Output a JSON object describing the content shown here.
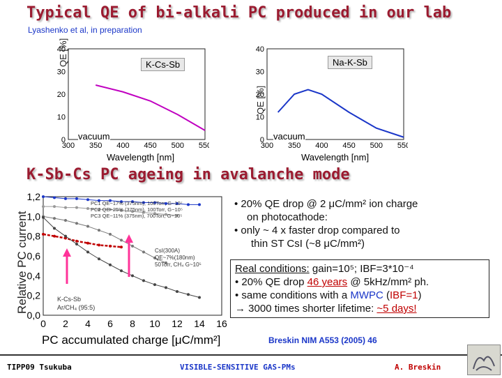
{
  "title": "Typical QE of bi-alkali PC produced in our lab",
  "ref_top": "Lyashenko et al, in preparation",
  "subtitle": "K-Sb-Cs PC ageing in avalanche mode",
  "chart_data": [
    {
      "type": "line",
      "label": "K-Cs-Sb",
      "annotation": "vacuum",
      "xlabel": "Wavelength [nm]",
      "ylabel": "QE [%]",
      "xlim": [
        300,
        550
      ],
      "ylim": [
        0,
        40
      ],
      "x": [
        350,
        400,
        450,
        500,
        550
      ],
      "y": [
        24,
        21,
        17,
        11,
        4
      ],
      "color": "#c000c0"
    },
    {
      "type": "line",
      "label": "Na-K-Sb",
      "annotation": "vacuum",
      "xlabel": "Wavelength [nm]",
      "ylabel": "QE [%]",
      "xlim": [
        300,
        550
      ],
      "ylim": [
        0,
        40
      ],
      "x": [
        320,
        350,
        375,
        400,
        450,
        500,
        550
      ],
      "y": [
        12,
        20,
        22,
        20,
        12,
        5,
        1
      ],
      "color": "#1a36c8"
    },
    {
      "type": "line",
      "xlabel": "PC accumulated charge [μC/mm²]",
      "ylabel": "Relative PC current",
      "xlim": [
        0,
        16
      ],
      "ylim": [
        0,
        1.2
      ],
      "xticks": [
        "0",
        "2",
        "4",
        "6",
        "8",
        "10",
        "12",
        "14",
        "16"
      ],
      "yticks": [
        "0,0",
        "0,2",
        "0,4",
        "0,6",
        "0,8",
        "1,0",
        "1,2"
      ],
      "series": [
        {
          "name": "PC1 QE~17% (375nm), 100Torr, G~10⁷",
          "color": "#1a36c8",
          "x": [
            0,
            1,
            2,
            3,
            4,
            5,
            6,
            7,
            8,
            9,
            10,
            11,
            12,
            13,
            14
          ],
          "y": [
            1.2,
            1.19,
            1.18,
            1.18,
            1.17,
            1.16,
            1.16,
            1.15,
            1.15,
            1.14,
            1.14,
            1.13,
            1.13,
            1.12,
            1.12
          ]
        },
        {
          "name": "PC2 QE~25% (375nm), 100Torr, G~10⁵",
          "color": "#777777",
          "x": [
            0,
            1,
            2,
            3,
            4,
            5,
            6,
            7,
            8,
            9,
            10,
            11
          ],
          "y": [
            1.0,
            0.98,
            0.96,
            0.93,
            0.9,
            0.86,
            0.82,
            0.76,
            0.7,
            0.64,
            0.58,
            0.53
          ]
        },
        {
          "name": "PC3 QE~11% (375nm), 700Torr, G~10⁵",
          "color": "#999999",
          "x": [
            0,
            1,
            2,
            3,
            4,
            5,
            6,
            7,
            8,
            9,
            10,
            11,
            12
          ],
          "y": [
            1.1,
            1.1,
            1.09,
            1.09,
            1.08,
            1.07,
            1.07,
            1.06,
            1.05,
            1.04,
            1.03,
            1.02,
            1.01
          ]
        },
        {
          "name": "CsI(300A) QE~7%(180nm) 50Torr, CH₄ G~10⁵",
          "color": "#c00000",
          "x": [
            0,
            1,
            2,
            3,
            4,
            5,
            6,
            7
          ],
          "y": [
            0.82,
            0.8,
            0.78,
            0.75,
            0.73,
            0.71,
            0.7,
            0.69
          ]
        },
        {
          "name": "K-Cs-Sb Ar/CH₄ (95:5)",
          "color": "#444444",
          "x": [
            0,
            1,
            2,
            3,
            4,
            5,
            6,
            7,
            8,
            9,
            10,
            11,
            12,
            13,
            14
          ],
          "y": [
            0.99,
            0.88,
            0.8,
            0.72,
            0.64,
            0.57,
            0.51,
            0.45,
            0.4,
            0.35,
            0.31,
            0.28,
            0.24,
            0.21,
            0.18
          ]
        }
      ],
      "legend": [
        "PC1 QE~17% (375nm), 100Torr, G~10⁷",
        "PC2 QE~25% (375nm), 100Torr, G~10⁵",
        "PC3 QE~11% (375nm), 700Torr, G~10⁵"
      ],
      "annotations": {
        "csi": [
          "CsI(300A)",
          "QE~7%(180nm)",
          "50Torr, CH₄ G~10⁵"
        ],
        "kcs": [
          "K-Cs-Sb",
          "Ar/CH₄ (95:5)"
        ]
      }
    }
  ],
  "bullets": [
    "• 20% QE drop @ 2 μC/mm² ion charge",
    "on photocathode:",
    "• only ~ 4 x faster drop compared to",
    "thin ST CsI (~8 μC/mm²)"
  ],
  "real_conditions": {
    "line1_a": "Real conditions:",
    "line1_b": " gain=10⁵; IBF=3*10⁻⁴",
    "line2_a": "• 20% QE drop ",
    "line2_b": "46 years",
    "line2_c": " @ 5kHz/mm² ph.",
    "line3_a": "• same conditions with a ",
    "line3_b": "MWPC",
    "line3_c": " (",
    "line3_d": "IBF=1",
    "line3_e": ")",
    "line4_a": "→ 3000 times shorter lifetime: ",
    "line4_b": "~5 days!"
  },
  "ref_bottom": "Breskin NIM A553 (2005) 46",
  "footer": {
    "left": "TIPP09 Tsukuba",
    "center": "VISIBLE-SENSITIVE GAS-PMs",
    "right": "A. Breskin"
  }
}
